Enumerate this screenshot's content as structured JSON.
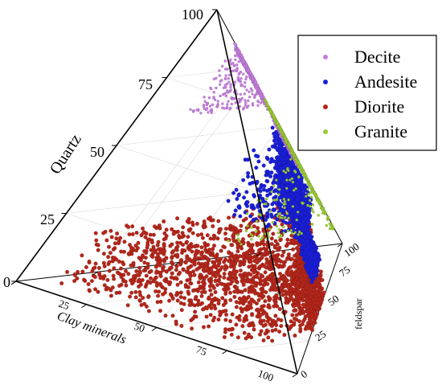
{
  "chart_data": {
    "type": "scatter",
    "title": "",
    "axes": {
      "quartz": {
        "label": "Quartz",
        "ticks": [
          "0",
          "25",
          "50",
          "75",
          "100"
        ],
        "range": [
          0,
          100
        ]
      },
      "clay": {
        "label": "Clay minerals",
        "ticks": [
          "25",
          "50",
          "75",
          "100"
        ],
        "range": [
          0,
          100
        ]
      },
      "feldspar": {
        "label": "feldspar",
        "ticks": [
          "0",
          "25",
          "50",
          "75",
          "100"
        ],
        "range": [
          0,
          100
        ]
      }
    },
    "grid": true,
    "legend_position": "top-right",
    "series": [
      {
        "name": "Decite",
        "color": "#c77fe0",
        "clusters": [
          {
            "quartz": [
              60,
              98
            ],
            "clay": [
              0,
              3
            ],
            "feldspar": [
              15,
              40
            ],
            "count": 600
          },
          {
            "quartz": [
              40,
              75
            ],
            "clay": [
              0,
              4
            ],
            "feldspar": [
              55,
              80
            ],
            "count": 400
          }
        ]
      },
      {
        "name": "Andesite",
        "color": "#1a1fd6",
        "clusters": [
          {
            "quartz": [
              22,
              55
            ],
            "clay": [
              5,
              40
            ],
            "feldspar": [
              40,
              75
            ],
            "count": 1500
          },
          {
            "quartz": [
              10,
              25
            ],
            "clay": [
              30,
              55
            ],
            "feldspar": [
              55,
              80
            ],
            "count": 500
          }
        ]
      },
      {
        "name": "Diorite",
        "color": "#b3261a",
        "clusters": [
          {
            "quartz": [
              0,
              22
            ],
            "clay": [
              5,
              75
            ],
            "feldspar": [
              5,
              65
            ],
            "count": 2000
          }
        ]
      },
      {
        "name": "Granite",
        "color": "#9acd32",
        "clusters": [
          {
            "quartz": [
              5,
              100
            ],
            "clay": [
              0,
              2
            ],
            "feldspar": [
              60,
              100
            ],
            "count": 700
          }
        ]
      }
    ]
  }
}
